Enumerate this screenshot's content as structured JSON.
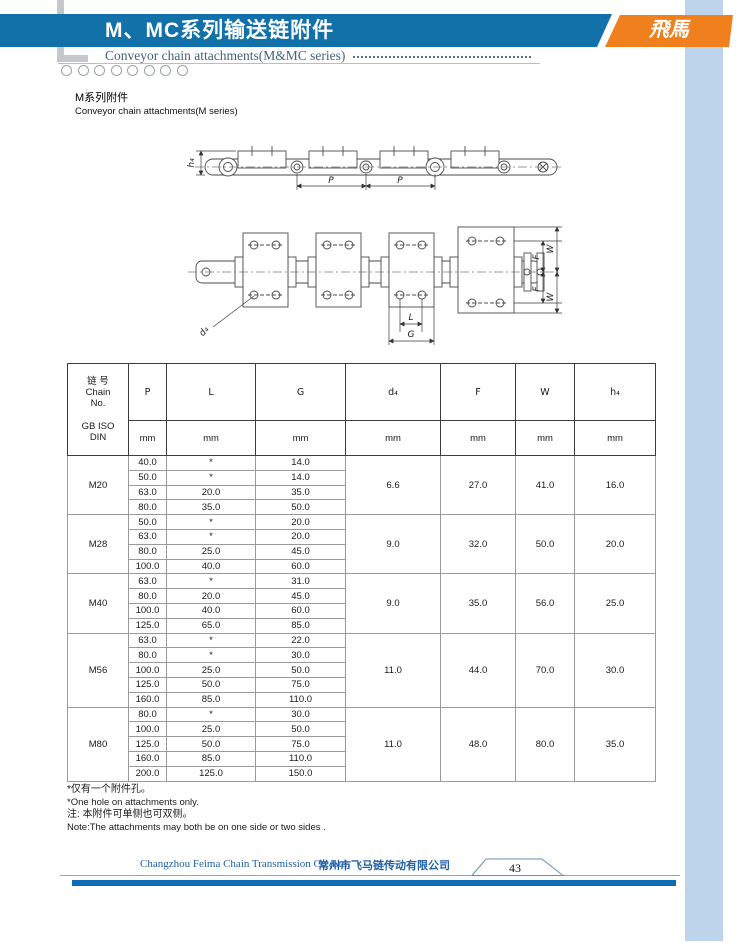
{
  "header": {
    "title": "M、MC系列输送链附件",
    "subtitle": "Conveyor chain attachments(M&MC series)",
    "logo_text": "飛馬",
    "colors": {
      "banner_blue": "#1371A9",
      "logo_orange": "#F07F1D",
      "stripe_blue": "#BED4EA",
      "footer_bar_blue": "#0d6cb5"
    }
  },
  "section": {
    "title_cn": "M系列附件",
    "title_en": "Conveyor chain attachments(M series)"
  },
  "drawings": {
    "side_view": {
      "h4": "h₄",
      "p_left": "P",
      "p_right": "P"
    },
    "top_view": {
      "d4": "d₄",
      "l": "L",
      "g": "G",
      "f_top": "F",
      "w_top": "W",
      "f_bottom": "F",
      "w_bottom": "W"
    }
  },
  "table": {
    "header": {
      "chain_cn": "链 号",
      "chain_en1": "Chain",
      "chain_en2": "No.",
      "chain_std1": "GB ISO",
      "chain_std2": "DIN",
      "cols": [
        "P",
        "L",
        "G",
        "d₄",
        "F",
        "W",
        "h₄"
      ],
      "unit": "mm"
    },
    "groups": [
      {
        "chain": "M20",
        "rows": [
          [
            "40.0",
            "*",
            "14.0"
          ],
          [
            "50.0",
            "*",
            "14.0"
          ],
          [
            "63.0",
            "20.0",
            "35.0"
          ],
          [
            "80.0",
            "35.0",
            "50.0"
          ]
        ],
        "d4": "6.6",
        "F": "27.0",
        "W": "41.0",
        "h4": "16.0"
      },
      {
        "chain": "M28",
        "rows": [
          [
            "50.0",
            "*",
            "20.0"
          ],
          [
            "63.0",
            "*",
            "20.0"
          ],
          [
            "80.0",
            "25.0",
            "45.0"
          ],
          [
            "100.0",
            "40.0",
            "60.0"
          ]
        ],
        "d4": "9.0",
        "F": "32.0",
        "W": "50.0",
        "h4": "20.0"
      },
      {
        "chain": "M40",
        "rows": [
          [
            "63.0",
            "*",
            "31.0"
          ],
          [
            "80.0",
            "20.0",
            "45.0"
          ],
          [
            "100.0",
            "40.0",
            "60.0"
          ],
          [
            "125.0",
            "65.0",
            "85.0"
          ]
        ],
        "d4": "9.0",
        "F": "35.0",
        "W": "56.0",
        "h4": "25.0"
      },
      {
        "chain": "M56",
        "rows": [
          [
            "63.0",
            "*",
            "22.0"
          ],
          [
            "80.0",
            "*",
            "30.0"
          ],
          [
            "100.0",
            "25.0",
            "50.0"
          ],
          [
            "125.0",
            "50.0",
            "75.0"
          ],
          [
            "160.0",
            "85.0",
            "110.0"
          ]
        ],
        "d4": "11.0",
        "F": "44.0",
        "W": "70.0",
        "h4": "30.0"
      },
      {
        "chain": "M80",
        "rows": [
          [
            "80.0",
            "*",
            "30.0"
          ],
          [
            "100.0",
            "25.0",
            "50.0"
          ],
          [
            "125.0",
            "50.0",
            "75.0"
          ],
          [
            "160.0",
            "85.0",
            "110.0"
          ],
          [
            "200.0",
            "125.0",
            "150.0"
          ]
        ],
        "d4": "11.0",
        "F": "48.0",
        "W": "80.0",
        "h4": "35.0"
      }
    ]
  },
  "notes": {
    "line1_cn": "*仅有一个附件孔。",
    "line2_en": "*One hole on attachments only.",
    "line3_cn": "注: 本附件可单侧也可双侧。",
    "line4_en": "Note:The attachments may both be on one side or two sides ."
  },
  "footer": {
    "company_en": "Changzhou Feima Chain Transmission Co.,Ltd.",
    "company_cn": "常州市飞马链传动有限公司",
    "page_number": "43"
  }
}
